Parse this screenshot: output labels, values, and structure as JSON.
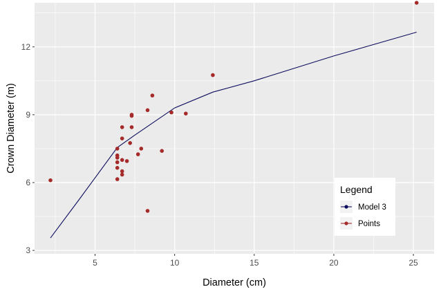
{
  "chart_data": {
    "type": "line",
    "title": "",
    "xlabel": "Diameter (cm)",
    "ylabel": "Crown Diameter (m)",
    "xlim": [
      1.2,
      26.3
    ],
    "ylim": [
      2.85,
      13.95
    ],
    "x_ticks": [
      5,
      10,
      15,
      20,
      25
    ],
    "x_tick_labels": [
      "5",
      "10",
      "15",
      "20",
      "25"
    ],
    "y_ticks": [
      3,
      6,
      9,
      12
    ],
    "y_tick_labels": [
      "3",
      "6",
      "9",
      "12"
    ],
    "grid": true,
    "legend": {
      "title": "Legend",
      "placement": "inside bottom-right",
      "entries": [
        "Model 3",
        "Points"
      ]
    },
    "series": [
      {
        "name": "Model 3",
        "kind": "line",
        "color": "#0d0d5e",
        "points": [
          [
            2.2,
            3.55
          ],
          [
            4.0,
            5.25
          ],
          [
            6.4,
            7.55
          ],
          [
            7.5,
            8.1
          ],
          [
            10.0,
            9.3
          ],
          [
            12.4,
            10.0
          ],
          [
            15.0,
            10.5
          ],
          [
            20.0,
            11.6
          ],
          [
            25.2,
            12.65
          ]
        ]
      },
      {
        "name": "Points",
        "kind": "scatter",
        "color": "#a52a2a",
        "points": [
          [
            2.2,
            6.1
          ],
          [
            6.4,
            6.15
          ],
          [
            6.4,
            6.65
          ],
          [
            6.4,
            6.9
          ],
          [
            6.4,
            7.1
          ],
          [
            6.4,
            7.2
          ],
          [
            6.4,
            7.5
          ],
          [
            6.7,
            6.35
          ],
          [
            6.7,
            6.5
          ],
          [
            6.7,
            7.0
          ],
          [
            6.7,
            7.95
          ],
          [
            6.7,
            8.45
          ],
          [
            7.0,
            6.95
          ],
          [
            7.2,
            7.75
          ],
          [
            7.3,
            8.45
          ],
          [
            7.3,
            8.95
          ],
          [
            7.3,
            9.0
          ],
          [
            7.7,
            7.25
          ],
          [
            7.9,
            7.5
          ],
          [
            8.3,
            4.75
          ],
          [
            8.3,
            9.2
          ],
          [
            8.6,
            9.85
          ],
          [
            9.2,
            7.4
          ],
          [
            9.8,
            9.1
          ],
          [
            10.7,
            9.05
          ],
          [
            12.4,
            10.75
          ],
          [
            25.2,
            13.95
          ]
        ]
      }
    ],
    "colors": {
      "panel_background": "#ebebeb",
      "grid_line": "#ffffff",
      "axis_text": "#4d4d4d",
      "axis_title": "#000000"
    }
  }
}
